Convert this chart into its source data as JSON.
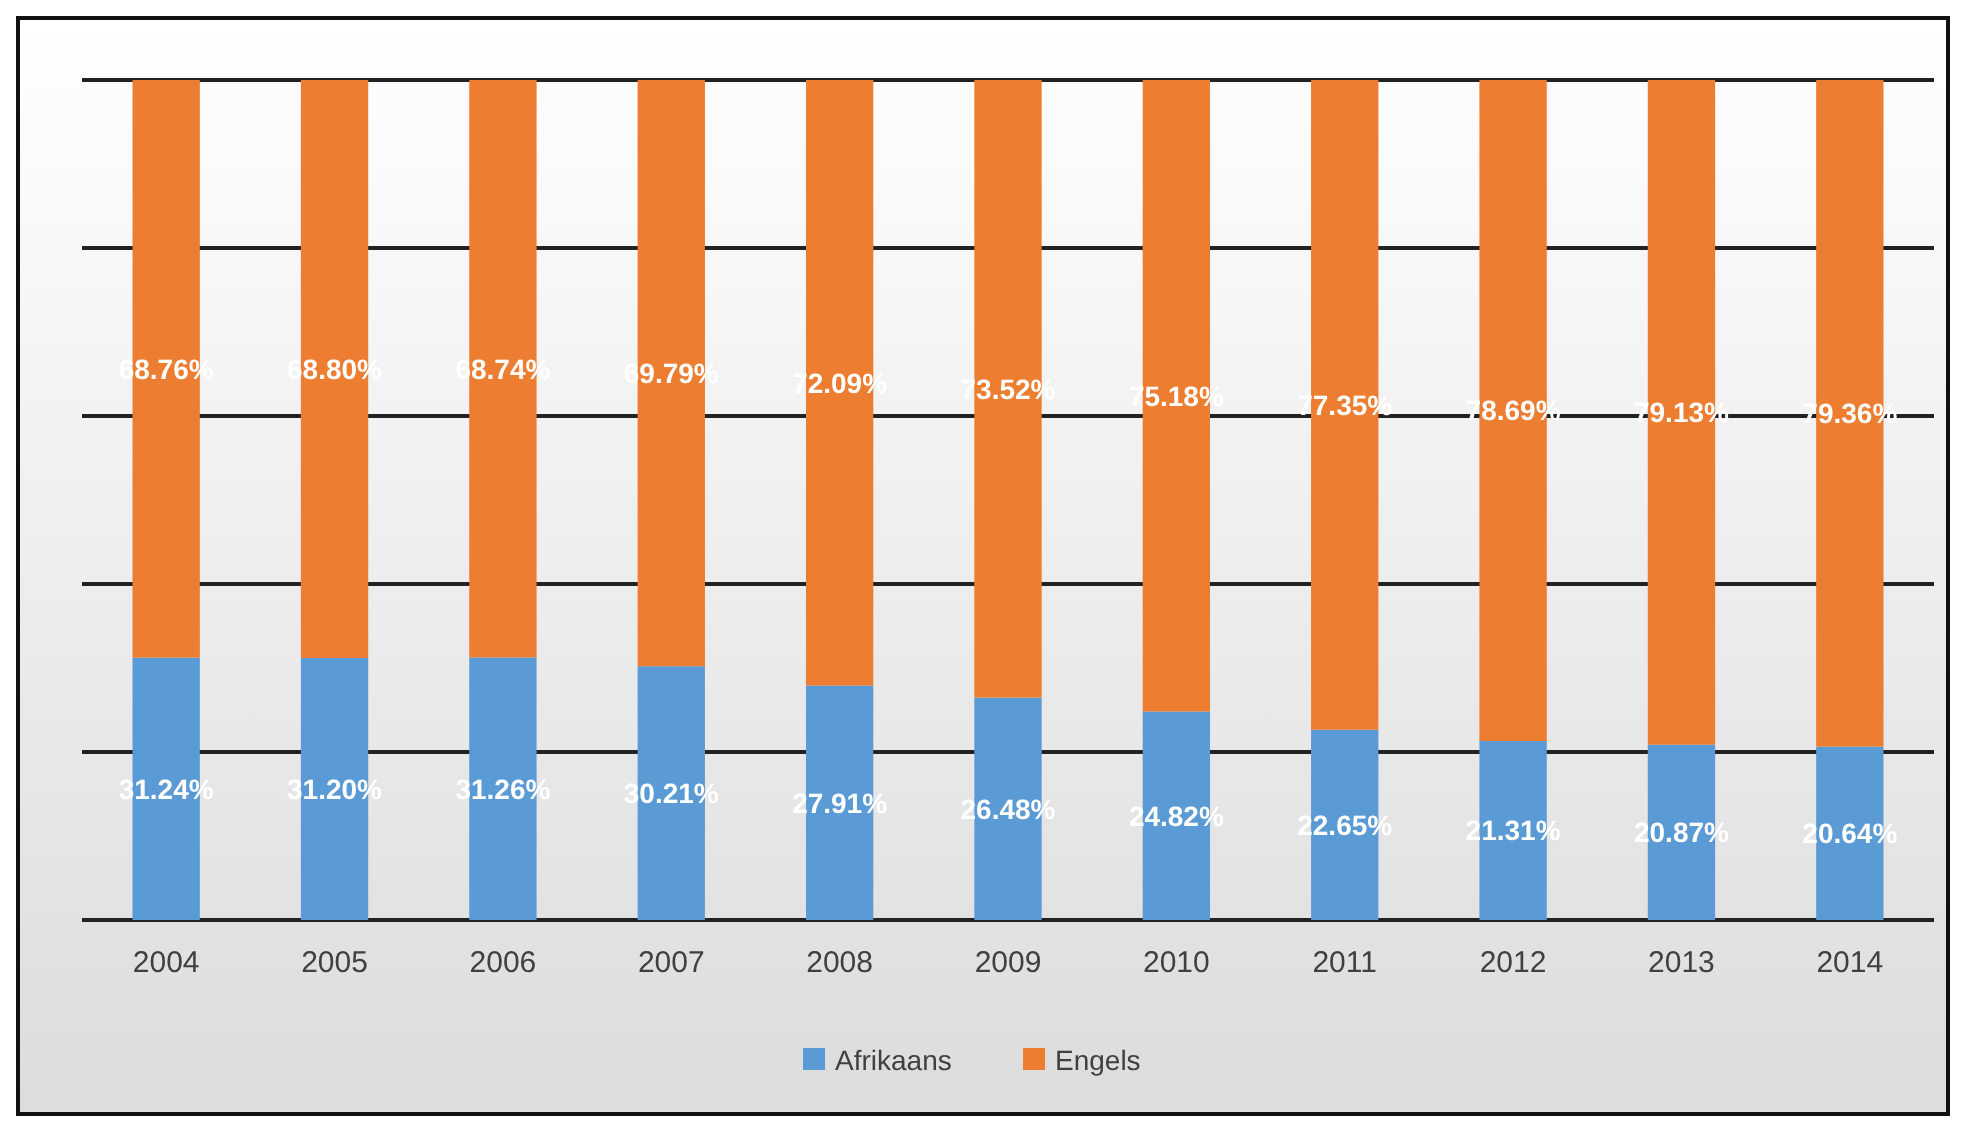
{
  "chart_data": {
    "type": "bar",
    "stacked": true,
    "categories": [
      "2004",
      "2005",
      "2006",
      "2007",
      "2008",
      "2009",
      "2010",
      "2011",
      "2012",
      "2013",
      "2014"
    ],
    "series": [
      {
        "name": "Afrikaans",
        "color": "#5b9bd5",
        "values": [
          31.24,
          31.2,
          31.26,
          30.21,
          27.91,
          26.48,
          24.82,
          22.65,
          21.31,
          20.87,
          20.64
        ],
        "value_labels": [
          "31.24%",
          "31.20%",
          "31.26%",
          "30.21%",
          "27.91%",
          "26.48%",
          "24.82%",
          "22.65%",
          "21.31%",
          "20.87%",
          "20.64%"
        ]
      },
      {
        "name": "Engels",
        "color": "#ed7d31",
        "values": [
          68.76,
          68.8,
          68.74,
          69.79,
          72.09,
          73.52,
          75.18,
          77.35,
          78.69,
          79.13,
          79.36
        ],
        "value_labels": [
          "68.76%",
          "68.80%",
          "68.74%",
          "69.79%",
          "72.09%",
          "73.52%",
          "75.18%",
          "77.35%",
          "78.69%",
          "79.13%",
          "79.36%"
        ]
      }
    ],
    "ylim": [
      0,
      100
    ],
    "yticks": [
      {
        "value": 0,
        "label": null
      },
      {
        "value": 20,
        "label": null
      },
      {
        "value": 40,
        "label": null
      },
      {
        "value": 60,
        "label": null
      },
      {
        "value": 80,
        "label": null
      },
      {
        "value": 100,
        "label": null
      }
    ],
    "grid": "y",
    "tick_labels": "x",
    "legend": "bottom"
  }
}
